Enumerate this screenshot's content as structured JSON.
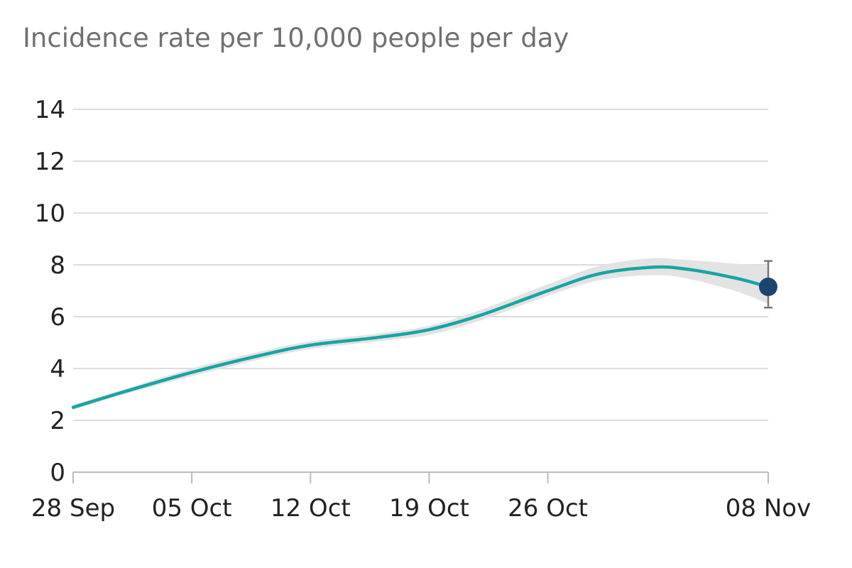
{
  "chart_data": {
    "type": "line",
    "title": "Incidence rate per 10,000 people per day",
    "xlabel": "",
    "ylabel": "",
    "ylim": [
      0,
      14
    ],
    "yticks": [
      0,
      2,
      4,
      6,
      8,
      10,
      12,
      14
    ],
    "xlim": [
      "2020-09-28",
      "2020-11-08"
    ],
    "xticks": [
      {
        "date": "2020-09-28",
        "label": "28 Sep"
      },
      {
        "date": "2020-10-05",
        "label": "05 Oct"
      },
      {
        "date": "2020-10-12",
        "label": "12 Oct"
      },
      {
        "date": "2020-10-19",
        "label": "19 Oct"
      },
      {
        "date": "2020-10-26",
        "label": "26 Oct"
      },
      {
        "date": "2020-11-08",
        "label": "08 Nov"
      }
    ],
    "grid": true,
    "series": [
      {
        "color": "#1aa3a3",
        "band_color": "#e3e3e3",
        "points": [
          {
            "x": "2020-09-28",
            "y": 2.5,
            "low": 2.4,
            "high": 2.6
          },
          {
            "x": "2020-10-01",
            "y": 3.1,
            "low": 3.0,
            "high": 3.2
          },
          {
            "x": "2020-10-05",
            "y": 3.85,
            "low": 3.7,
            "high": 4.0
          },
          {
            "x": "2020-10-09",
            "y": 4.5,
            "low": 4.35,
            "high": 4.65
          },
          {
            "x": "2020-10-12",
            "y": 4.9,
            "low": 4.75,
            "high": 5.05
          },
          {
            "x": "2020-10-16",
            "y": 5.2,
            "low": 5.05,
            "high": 5.35
          },
          {
            "x": "2020-10-19",
            "y": 5.5,
            "low": 5.3,
            "high": 5.65
          },
          {
            "x": "2020-10-22",
            "y": 6.05,
            "low": 5.85,
            "high": 6.25
          },
          {
            "x": "2020-10-26",
            "y": 7.0,
            "low": 6.8,
            "high": 7.25
          },
          {
            "x": "2020-10-29",
            "y": 7.65,
            "low": 7.4,
            "high": 7.95
          },
          {
            "x": "2020-11-01",
            "y": 7.9,
            "low": 7.6,
            "high": 8.25
          },
          {
            "x": "2020-11-03",
            "y": 7.85,
            "low": 7.5,
            "high": 8.2
          },
          {
            "x": "2020-11-06",
            "y": 7.5,
            "low": 7.0,
            "high": 8.05
          },
          {
            "x": "2020-11-08",
            "y": 7.15,
            "low": 6.5,
            "high": 7.95
          }
        ]
      }
    ],
    "highlight": {
      "x": "2020-11-08",
      "y": 7.15,
      "low": 6.35,
      "high": 8.15,
      "color": "#1d4370",
      "error_bar_color": "#777777"
    }
  }
}
